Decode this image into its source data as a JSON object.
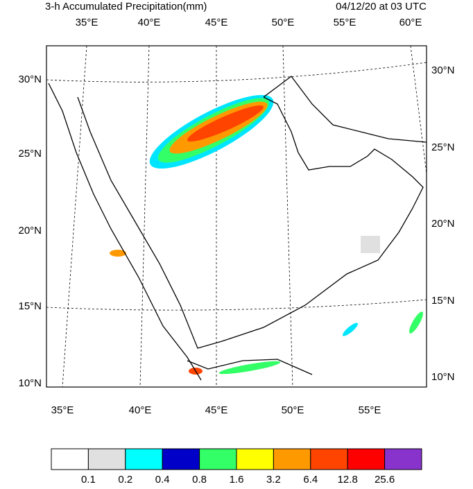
{
  "header": {
    "title": "3-h Accumulated Precipitation(mm)",
    "time": "04/12/20 at 03 UTC"
  },
  "map": {
    "top_lon_labels": [
      "35°E",
      "40°E",
      "45°E",
      "50°E",
      "55°E",
      "60°E"
    ],
    "bottom_lon_labels": [
      "35°E",
      "40°E",
      "45°E",
      "50°E",
      "55°E"
    ],
    "left_lat_labels": [
      "30°N",
      "25°N",
      "20°N",
      "15°N",
      "10°N"
    ],
    "right_lat_labels": [
      "30°N",
      "25°N",
      "20°N",
      "15°N",
      "10°N"
    ]
  },
  "colorbar": {
    "levels": [
      0.1,
      0.2,
      0.4,
      0.8,
      1.6,
      3.2,
      6.4,
      12.8,
      25.6
    ],
    "colors": [
      "#ffffff",
      "#e0e0e0",
      "#00ffff",
      "#0000c8",
      "#33ff66",
      "#ffff00",
      "#ff9900",
      "#ff4400",
      "#ff0000",
      "#8833cc"
    ]
  }
}
